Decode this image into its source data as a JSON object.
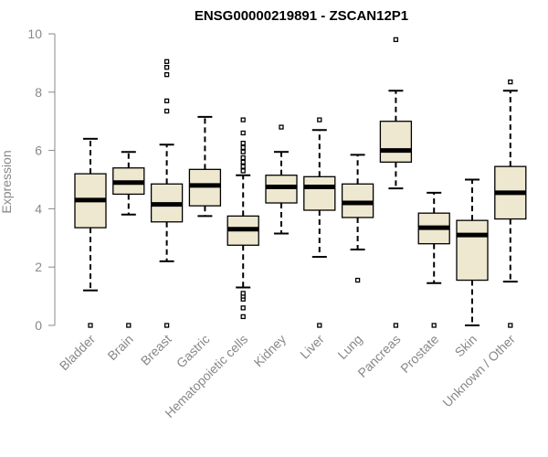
{
  "chart_data": {
    "type": "box",
    "title": "ENSG00000219891 - ZSCAN12P1",
    "ylabel": "Expression",
    "xlabel": "",
    "ylim": [
      0,
      10
    ],
    "yticks": [
      0,
      2,
      4,
      6,
      8,
      10
    ],
    "box_color": "#eee8d0",
    "grid": false,
    "categories": [
      "Bladder",
      "Brain",
      "Breast",
      "Gastric",
      "Hematopoietic cells",
      "Kidney",
      "Liver",
      "Lung",
      "Pancreas",
      "Prostate",
      "Skin",
      "Unknown / Other"
    ],
    "boxes": [
      {
        "min": 1.2,
        "q1": 3.35,
        "median": 4.3,
        "q3": 5.2,
        "max": 6.4,
        "outliers": [
          0.0
        ]
      },
      {
        "min": 3.8,
        "q1": 4.5,
        "median": 4.9,
        "q3": 5.4,
        "max": 5.95,
        "outliers": [
          0.0
        ]
      },
      {
        "min": 2.2,
        "q1": 3.55,
        "median": 4.15,
        "q3": 4.85,
        "max": 6.2,
        "outliers": [
          0.0,
          7.35,
          7.7,
          8.6,
          8.85,
          9.05
        ]
      },
      {
        "min": 3.75,
        "q1": 4.1,
        "median": 4.8,
        "q3": 5.35,
        "max": 7.15,
        "outliers": []
      },
      {
        "min": 1.3,
        "q1": 2.75,
        "median": 3.3,
        "q3": 3.75,
        "max": 5.15,
        "outliers": [
          0.3,
          0.6,
          0.9,
          1.0,
          1.1,
          5.3,
          5.45,
          5.6,
          5.75,
          5.95,
          6.1,
          6.25,
          6.6,
          7.05
        ]
      },
      {
        "min": 3.15,
        "q1": 4.2,
        "median": 4.75,
        "q3": 5.15,
        "max": 5.95,
        "outliers": [
          6.8
        ]
      },
      {
        "min": 2.35,
        "q1": 3.95,
        "median": 4.75,
        "q3": 5.1,
        "max": 6.7,
        "outliers": [
          0.0,
          7.05
        ]
      },
      {
        "min": 2.6,
        "q1": 3.7,
        "median": 4.2,
        "q3": 4.85,
        "max": 5.85,
        "outliers": [
          1.55
        ]
      },
      {
        "min": 4.7,
        "q1": 5.6,
        "median": 6.0,
        "q3": 7.0,
        "max": 8.05,
        "outliers": [
          0.0,
          9.8
        ]
      },
      {
        "min": 1.45,
        "q1": 2.8,
        "median": 3.35,
        "q3": 3.85,
        "max": 4.55,
        "outliers": [
          0.0
        ]
      },
      {
        "min": 0.0,
        "q1": 1.55,
        "median": 3.1,
        "q3": 3.6,
        "max": 5.0,
        "outliers": []
      },
      {
        "min": 1.5,
        "q1": 3.65,
        "median": 4.55,
        "q3": 5.45,
        "max": 8.05,
        "outliers": [
          0.0,
          8.35
        ]
      }
    ]
  }
}
